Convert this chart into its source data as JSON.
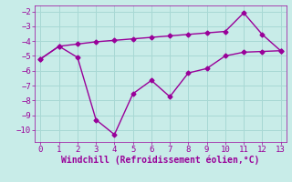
{
  "x": [
    0,
    1,
    2,
    3,
    4,
    5,
    6,
    7,
    8,
    9,
    10,
    11,
    12,
    13
  ],
  "line1": [
    -5.2,
    -4.35,
    -4.2,
    -4.05,
    -3.95,
    -3.85,
    -3.75,
    -3.65,
    -3.55,
    -3.45,
    -3.35,
    -2.1,
    -3.55,
    -4.65
  ],
  "line2": [
    -5.2,
    -4.35,
    -5.1,
    -9.3,
    -10.3,
    -7.55,
    -6.65,
    -7.75,
    -6.15,
    -5.85,
    -5.0,
    -4.75,
    -4.7,
    -4.65
  ],
  "line_color": "#990099",
  "bg_color": "#c8ece8",
  "grid_color": "#a8d8d4",
  "xlabel": "Windchill (Refroidissement éolien,°C)",
  "xlabel_color": "#990099",
  "ylim": [
    -10.8,
    -1.6
  ],
  "xlim": [
    -0.3,
    13.3
  ],
  "yticks": [
    -10,
    -9,
    -8,
    -7,
    -6,
    -5,
    -4,
    -3,
    -2
  ],
  "xticks": [
    0,
    1,
    2,
    3,
    4,
    5,
    6,
    7,
    8,
    9,
    10,
    11,
    12,
    13
  ],
  "marker": "D",
  "markersize": 2.5,
  "linewidth": 1.0,
  "tick_fontsize": 6.5,
  "xlabel_fontsize": 7.0
}
